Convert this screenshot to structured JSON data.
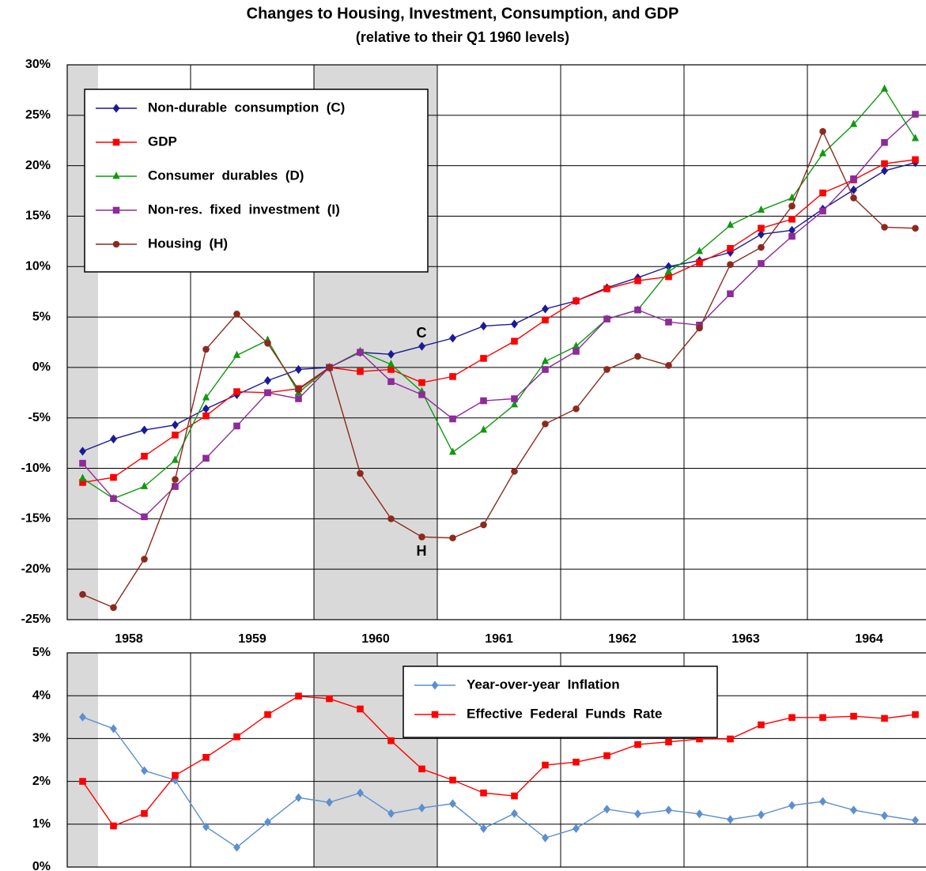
{
  "chart_data": [
    {
      "type": "line",
      "title": "Changes to Housing, Investment, Consumption, and GDP",
      "subtitle": "(relative to their Q1 1960 levels)",
      "x": [
        1958.125,
        1958.375,
        1958.625,
        1958.875,
        1959.125,
        1959.375,
        1959.625,
        1959.875,
        1960.125,
        1960.375,
        1960.625,
        1960.875,
        1961.125,
        1961.375,
        1961.625,
        1961.875,
        1962.125,
        1962.375,
        1962.625,
        1962.875,
        1963.125,
        1963.375,
        1963.625,
        1963.875,
        1964.125,
        1964.375,
        1964.625,
        1964.875
      ],
      "xlim": [
        1958,
        1965
      ],
      "xticks": [
        {
          "value": 1958,
          "label": "1958"
        },
        {
          "value": 1959,
          "label": "1959"
        },
        {
          "value": 1960,
          "label": "1960"
        },
        {
          "value": 1961,
          "label": "1961"
        },
        {
          "value": 1962,
          "label": "1962"
        },
        {
          "value": 1963,
          "label": "1963"
        },
        {
          "value": 1964,
          "label": "1964"
        }
      ],
      "ylim": [
        -25,
        30
      ],
      "yticks": [
        {
          "value": -25,
          "label": "-25%"
        },
        {
          "value": -20,
          "label": "-20%"
        },
        {
          "value": -15,
          "label": "-15%"
        },
        {
          "value": -10,
          "label": "-10%"
        },
        {
          "value": -5,
          "label": "-5%"
        },
        {
          "value": 0,
          "label": "0%"
        },
        {
          "value": 5,
          "label": "5%"
        },
        {
          "value": 10,
          "label": "10%"
        },
        {
          "value": 15,
          "label": "15%"
        },
        {
          "value": 20,
          "label": "20%"
        },
        {
          "value": 25,
          "label": "25%"
        },
        {
          "value": 30,
          "label": "30%"
        }
      ],
      "grid": true,
      "shaded": [
        [
          1958,
          1958.25
        ],
        [
          1960,
          1961
        ]
      ],
      "legend": "upper left",
      "annotations": [
        "C",
        "H"
      ],
      "series": [
        {
          "name": "Non-durable  consumption  (C)",
          "color": "#1a1a99",
          "marker": "diamond",
          "values": [
            -8.3,
            -7.1,
            -6.2,
            -5.7,
            -4.1,
            -2.7,
            -1.3,
            -0.2,
            0,
            1.5,
            1.3,
            2.1,
            2.9,
            4.1,
            4.3,
            5.8,
            6.6,
            7.9,
            8.9,
            10.0,
            10.6,
            11.4,
            13.2,
            13.6,
            15.7,
            17.6,
            19.5,
            20.3
          ]
        },
        {
          "name": "GDP",
          "color": "#ff0000",
          "marker": "square",
          "values": [
            -11.4,
            -10.9,
            -8.8,
            -6.7,
            -4.8,
            -2.4,
            -2.5,
            -2.1,
            0,
            -0.4,
            -0.2,
            -1.5,
            -0.9,
            0.9,
            2.6,
            4.7,
            6.6,
            7.8,
            8.6,
            9.0,
            10.4,
            11.8,
            13.8,
            14.7,
            17.3,
            18.6,
            20.2,
            20.6
          ]
        },
        {
          "name": "Consumer  durables  (D)",
          "color": "#119911",
          "marker": "triangle",
          "values": [
            -11.0,
            -13.0,
            -11.8,
            -9.2,
            -3.0,
            1.2,
            2.7,
            -2.5,
            0,
            1.6,
            0.3,
            -2.4,
            -8.4,
            -6.2,
            -3.7,
            0.6,
            2.1,
            4.8,
            5.7,
            9.5,
            11.5,
            14.1,
            15.6,
            16.8,
            21.2,
            24.1,
            27.6,
            22.7
          ]
        },
        {
          "name": "Non-res.  fixed  investment  (I)",
          "color": "#8e2a9a",
          "marker": "square",
          "values": [
            -9.5,
            -13.0,
            -14.8,
            -11.8,
            -9.0,
            -5.8,
            -2.5,
            -3.1,
            0,
            1.5,
            -1.4,
            -2.7,
            -5.1,
            -3.3,
            -3.1,
            -0.2,
            1.6,
            4.8,
            5.7,
            4.5,
            4.2,
            7.3,
            10.3,
            13.0,
            15.5,
            18.7,
            22.3,
            25.1
          ]
        },
        {
          "name": "Housing  (H)",
          "color": "#8b2a1e",
          "marker": "circle",
          "values": [
            -22.5,
            -23.8,
            -19.0,
            -11.1,
            1.8,
            5.3,
            2.4,
            -2.2,
            0,
            -10.5,
            -15.0,
            -16.8,
            -16.9,
            -15.6,
            -10.3,
            -5.6,
            -4.1,
            -0.2,
            1.1,
            0.2,
            3.9,
            10.2,
            11.9,
            16.0,
            23.4,
            16.8,
            13.9,
            13.8
          ]
        }
      ]
    },
    {
      "type": "line",
      "x": [
        1958.125,
        1958.375,
        1958.625,
        1958.875,
        1959.125,
        1959.375,
        1959.625,
        1959.875,
        1960.125,
        1960.375,
        1960.625,
        1960.875,
        1961.125,
        1961.375,
        1961.625,
        1961.875,
        1962.125,
        1962.375,
        1962.625,
        1962.875,
        1963.125,
        1963.375,
        1963.625,
        1963.875,
        1964.125,
        1964.375,
        1964.625,
        1964.875
      ],
      "xlim": [
        1958,
        1965
      ],
      "ylim": [
        0,
        5
      ],
      "yticks": [
        {
          "value": 0,
          "label": "0%"
        },
        {
          "value": 1,
          "label": "1%"
        },
        {
          "value": 2,
          "label": "2%"
        },
        {
          "value": 3,
          "label": "3%"
        },
        {
          "value": 4,
          "label": "4%"
        },
        {
          "value": 5,
          "label": "5%"
        }
      ],
      "grid": true,
      "shaded": [
        [
          1958,
          1958.25
        ],
        [
          1960,
          1961
        ]
      ],
      "legend": "upper right",
      "series": [
        {
          "name": "Year-over-year  Inflation",
          "color": "#5b8fd0",
          "marker": "diamond",
          "values": [
            3.5,
            3.23,
            2.25,
            2.03,
            0.94,
            0.46,
            1.05,
            1.62,
            1.51,
            1.73,
            1.25,
            1.38,
            1.48,
            0.9,
            1.25,
            0.68,
            0.9,
            1.35,
            1.24,
            1.33,
            1.24,
            1.11,
            1.22,
            1.44,
            1.53,
            1.33,
            1.2,
            1.09
          ]
        },
        {
          "name": "Effective  Federal  Funds  Rate",
          "color": "#ff0000",
          "marker": "square",
          "values": [
            2.0,
            0.96,
            1.25,
            2.14,
            2.56,
            3.04,
            3.56,
            3.99,
            3.93,
            3.69,
            2.95,
            2.29,
            2.03,
            1.73,
            1.66,
            2.38,
            2.45,
            2.6,
            2.86,
            2.92,
            2.99,
            2.99,
            3.32,
            3.49,
            3.49,
            3.52,
            3.47,
            3.56
          ]
        }
      ]
    }
  ]
}
